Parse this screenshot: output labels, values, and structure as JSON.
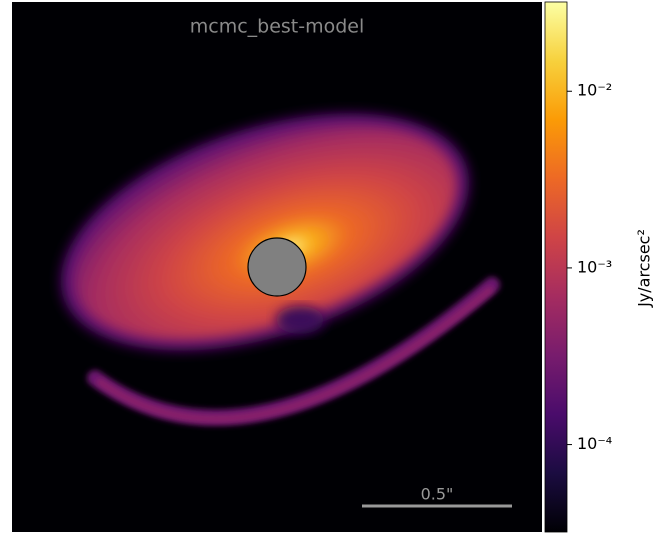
{
  "chart_data": {
    "type": "image",
    "title": "mcmc_best-model",
    "scale_bar_label": "0.5\"",
    "colorbar": {
      "label": "Jy/arcsec²",
      "colormap": "inferno",
      "log": true,
      "lim": [
        3.2e-05,
        0.032
      ],
      "ticks": [
        {
          "value": 0.0001,
          "label": "10⁻⁴"
        },
        {
          "value": 0.001,
          "label": "10⁻³"
        },
        {
          "value": 0.01,
          "label": "10⁻²"
        }
      ]
    }
  }
}
